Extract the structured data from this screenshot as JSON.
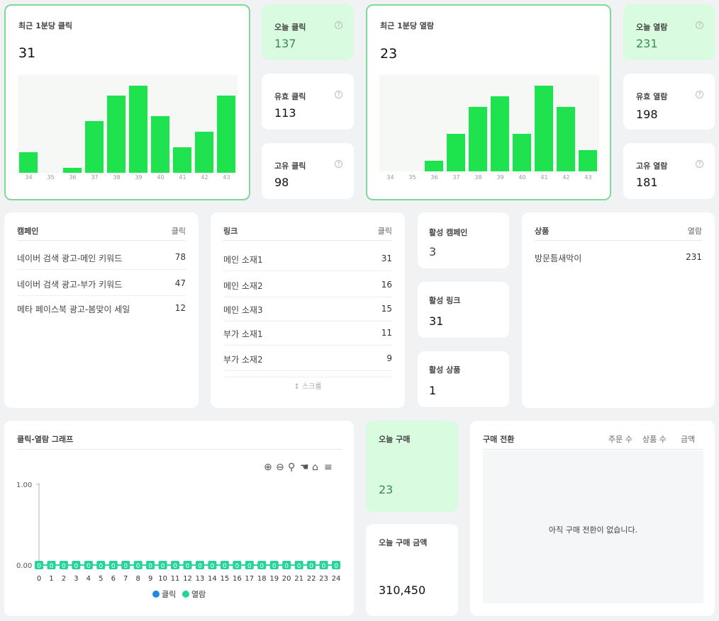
{
  "click_minute": {
    "title": "최근 1분당 클릭",
    "value": "31",
    "chart_data": {
      "type": "bar",
      "categories": [
        "34",
        "35",
        "36",
        "37",
        "38",
        "39",
        "40",
        "41",
        "42",
        "43"
      ],
      "values": [
        4,
        0,
        1,
        10,
        15,
        17,
        11,
        5,
        8,
        15
      ],
      "ylim": [
        0,
        19
      ]
    }
  },
  "today_click": {
    "title": "오늘 클릭",
    "value": "137"
  },
  "valid_click": {
    "title": "유효 클릭",
    "value": "113"
  },
  "unique_click": {
    "title": "고유 클릭",
    "value": "98"
  },
  "view_minute": {
    "title": "최근 1분당 열람",
    "value": "23",
    "chart_data": {
      "type": "bar",
      "categories": [
        "34",
        "35",
        "36",
        "37",
        "38",
        "39",
        "40",
        "41",
        "42",
        "43"
      ],
      "values": [
        0,
        0,
        2,
        7,
        12,
        14,
        7,
        16,
        12,
        4
      ],
      "ylim": [
        0,
        18
      ]
    }
  },
  "today_view": {
    "title": "오늘 열람",
    "value": "231"
  },
  "valid_view": {
    "title": "유효 열람",
    "value": "198"
  },
  "unique_view": {
    "title": "고유 열람",
    "value": "181"
  },
  "help_icon": "?",
  "campaign_table": {
    "col1": "캠페인",
    "col2": "클릭",
    "rows": [
      {
        "name": "네이버 검색 광고-메인 키워드",
        "value": "78"
      },
      {
        "name": "네이버 검색 광고-부가 키워드",
        "value": "47"
      },
      {
        "name": "메타 페이스북 광고-봄맞이 세일",
        "value": "12"
      }
    ]
  },
  "link_table": {
    "col1": "링크",
    "col2": "클릭",
    "rows": [
      {
        "name": "메인 소재1",
        "value": "31"
      },
      {
        "name": "메인 소재2",
        "value": "16"
      },
      {
        "name": "메인 소재3",
        "value": "15"
      },
      {
        "name": "부가 소재1",
        "value": "11"
      },
      {
        "name": "부가 소재2",
        "value": "9"
      }
    ],
    "scroll_label": "↕ 스크롤"
  },
  "active_campaign": {
    "title": "활성 캠페인",
    "value": "3"
  },
  "active_link": {
    "title": "활성 링크",
    "value": "31"
  },
  "active_product": {
    "title": "활성 상품",
    "value": "1"
  },
  "product_table": {
    "col1": "상품",
    "col2": "열람",
    "rows": [
      {
        "name": "방문틈새막이",
        "value": "231"
      }
    ]
  },
  "line_graph": {
    "title": "클릭-열람 그래프",
    "chart_data": {
      "type": "line",
      "x": [
        "0",
        "1",
        "2",
        "3",
        "4",
        "5",
        "6",
        "7",
        "8",
        "9",
        "10",
        "11",
        "12",
        "13",
        "14",
        "15",
        "16",
        "17",
        "18",
        "19",
        "20",
        "21",
        "22",
        "23",
        "24"
      ],
      "series": [
        {
          "name": "클릭",
          "values": [
            0,
            0,
            0,
            0,
            0,
            0,
            0,
            0,
            0,
            0,
            0,
            0,
            0,
            0,
            0,
            0,
            0,
            0,
            0,
            0,
            0,
            0,
            0,
            0,
            0
          ],
          "color": "#1e88e5"
        },
        {
          "name": "열람",
          "values": [
            0,
            0,
            0,
            0,
            0,
            0,
            0,
            0,
            0,
            0,
            0,
            0,
            0,
            0,
            0,
            0,
            0,
            0,
            0,
            0,
            0,
            0,
            0,
            0,
            0
          ],
          "color": "#26d39a"
        }
      ],
      "yticks": [
        "1.00",
        "0.00"
      ],
      "point_label": "0",
      "ylim": [
        0,
        1
      ]
    },
    "toolbar": [
      "zoom-in-icon",
      "zoom-out-icon",
      "magnify-icon",
      "pan-hand-icon",
      "home-icon",
      "menu-icon"
    ]
  },
  "today_purchase": {
    "title": "오늘 구매",
    "value": "23"
  },
  "today_purchase_amount": {
    "title": "오늘 구매 금액",
    "value": "310,450"
  },
  "conversion": {
    "title": "구매 전환",
    "cols": [
      "주문 수",
      "상품 수",
      "금액"
    ],
    "empty_text": "아직 구매 전환이 없습니다."
  }
}
